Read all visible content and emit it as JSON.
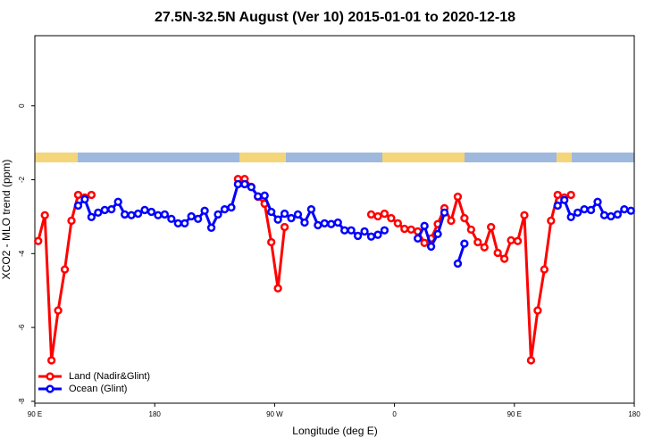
{
  "chart_data": {
    "type": "line",
    "title": "27.5N-32.5N August (Ver 10)   2015-01-01 to 2020-12-18",
    "xlabel": "Longitude (deg E)",
    "ylabel": "XCO2 - MLO trend (ppm)",
    "xlim": [
      90,
      540
    ],
    "ylim": [
      -8.05,
      1.9
    ],
    "xticks": [
      {
        "value": 90,
        "label": "90 E"
      },
      {
        "value": 180,
        "label": "180"
      },
      {
        "value": 270,
        "label": "90 W"
      },
      {
        "value": 360,
        "label": "0"
      },
      {
        "value": 450,
        "label": "90 E"
      },
      {
        "value": 540,
        "label": "180"
      }
    ],
    "yticks": [
      0,
      -2,
      -4,
      -6,
      -8
    ],
    "legend": "bottom-left",
    "x": [
      92.5,
      97.5,
      102.5,
      107.5,
      112.5,
      117.5,
      122.5,
      127.5,
      132.5,
      137.5,
      142.5,
      147.5,
      152.5,
      157.5,
      162.5,
      167.5,
      172.5,
      177.5,
      182.5,
      187.5,
      192.5,
      197.5,
      202.5,
      207.5,
      212.5,
      217.5,
      222.5,
      227.5,
      232.5,
      237.5,
      242.5,
      247.5,
      252.5,
      257.5,
      262.5,
      267.5,
      272.5,
      277.5,
      282.5,
      287.5,
      292.5,
      297.5,
      302.5,
      307.5,
      312.5,
      317.5,
      322.5,
      327.5,
      332.5,
      337.5,
      342.5,
      347.5,
      352.5,
      357.5,
      362.5,
      367.5,
      372.5,
      377.5,
      382.5,
      387.5,
      392.5,
      397.5,
      402.5,
      407.5,
      412.5,
      417.5,
      422.5,
      427.5,
      432.5,
      437.5,
      442.5,
      447.5,
      452.5,
      457.5,
      462.5,
      467.5,
      472.5,
      477.5,
      482.5,
      487.5,
      492.5,
      497.5,
      502.5,
      507.5,
      512.5,
      517.5,
      522.5,
      527.5,
      532.5,
      537.5
    ],
    "series": [
      {
        "name": "Land (Nadir&Glint)",
        "color": "#ff0000",
        "values": [
          -3.66,
          -2.96,
          -6.89,
          -5.54,
          -4.43,
          -3.11,
          -2.41,
          -2.48,
          -2.41,
          null,
          null,
          null,
          null,
          null,
          null,
          null,
          null,
          null,
          null,
          null,
          null,
          null,
          null,
          null,
          null,
          null,
          null,
          null,
          null,
          null,
          -1.98,
          -1.98,
          -2.19,
          -2.46,
          -2.65,
          -3.69,
          -4.94,
          -3.28,
          null,
          null,
          null,
          null,
          null,
          null,
          null,
          null,
          null,
          null,
          null,
          null,
          -2.94,
          -2.99,
          -2.92,
          -3.04,
          -3.18,
          -3.33,
          -3.35,
          -3.4,
          -3.71,
          -3.59,
          -3.2,
          -2.77,
          -3.11,
          -2.46,
          -3.04,
          -3.35,
          -3.69,
          -3.83,
          -3.28,
          -3.98,
          -4.14,
          -3.64,
          -3.66,
          -2.96,
          -6.89,
          -5.54,
          -4.43,
          -3.11,
          -2.41,
          -2.48,
          -2.41,
          null,
          null,
          null,
          null,
          null,
          null,
          null,
          null,
          null
        ]
      },
      {
        "name": "Ocean (Glint)",
        "color": "#0000ff",
        "values": [
          null,
          null,
          null,
          null,
          null,
          null,
          -2.7,
          -2.53,
          -3.01,
          -2.89,
          -2.82,
          -2.8,
          -2.6,
          -2.94,
          -2.96,
          -2.92,
          -2.82,
          -2.87,
          -2.96,
          -2.94,
          -3.06,
          -3.18,
          -3.18,
          -2.99,
          -3.06,
          -2.84,
          -3.3,
          -2.94,
          -2.8,
          -2.75,
          -2.12,
          -2.12,
          -2.2,
          -2.45,
          -2.43,
          -2.87,
          -3.08,
          -2.92,
          -3.04,
          -2.94,
          -3.16,
          -2.8,
          -3.23,
          -3.18,
          -3.2,
          -3.16,
          -3.37,
          -3.37,
          -3.52,
          -3.4,
          -3.54,
          -3.49,
          -3.37,
          null,
          null,
          null,
          null,
          -3.59,
          -3.25,
          -3.81,
          -3.47,
          -2.89,
          null,
          -4.27,
          -3.73,
          null,
          null,
          null,
          null,
          null,
          null,
          null,
          null,
          null,
          null,
          null,
          null,
          null,
          -2.7,
          -2.55,
          -3.01,
          -2.89,
          -2.8,
          -2.82,
          -2.6,
          -2.96,
          -2.99,
          -2.94,
          -2.8,
          -2.84
        ]
      }
    ]
  }
}
